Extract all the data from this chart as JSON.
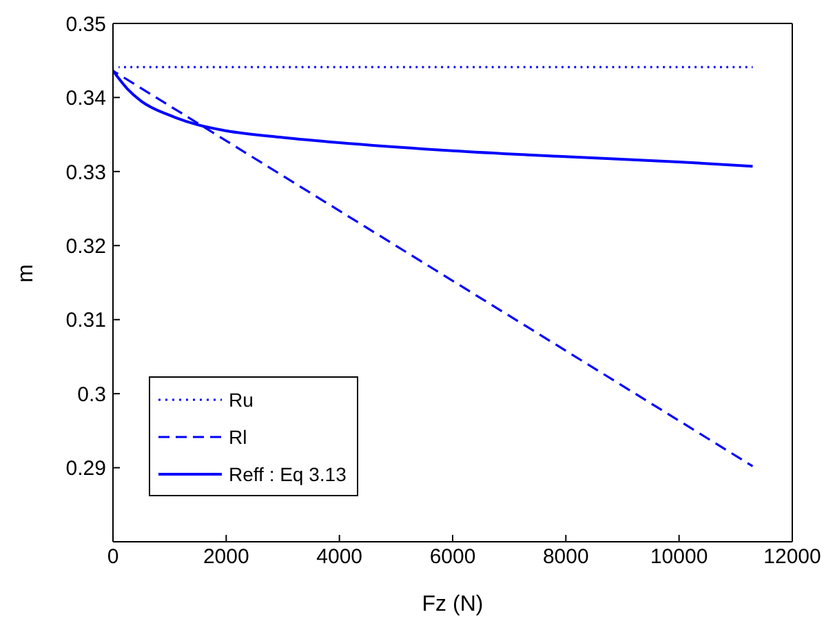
{
  "chart_data": {
    "type": "line",
    "xlabel": "Fz (N)",
    "ylabel": "m",
    "xlim": [
      0,
      12000
    ],
    "xticks": [
      0,
      2000,
      4000,
      6000,
      8000,
      10000,
      12000
    ],
    "ylim": [
      0.28,
      0.35
    ],
    "yticks": [
      0.29,
      0.3,
      0.31,
      0.32,
      0.33,
      0.34,
      0.35
    ],
    "grid": false,
    "legend": "bottom left",
    "series": [
      {
        "name": "Ru",
        "color": "#0000ff",
        "line_style": "dotted",
        "x": [
          100,
          11300
        ],
        "values": [
          0.3441,
          0.3441
        ]
      },
      {
        "name": "Rl",
        "color": "#0000ff",
        "line_style": "dashed",
        "x": [
          0,
          11300
        ],
        "values": [
          0.3436,
          0.2902
        ]
      },
      {
        "name": "Reff : Eq 3.13",
        "color": "#0000ff",
        "line_style": "solid",
        "x": [
          0,
          250,
          500,
          1000,
          1500,
          2000,
          3000,
          4000,
          6000,
          8000,
          10000,
          11300
        ],
        "values": [
          0.3436,
          0.3412,
          0.3395,
          0.3376,
          0.3363,
          0.3355,
          0.3346,
          0.3339,
          0.3328,
          0.332,
          0.3313,
          0.3307
        ]
      }
    ]
  }
}
